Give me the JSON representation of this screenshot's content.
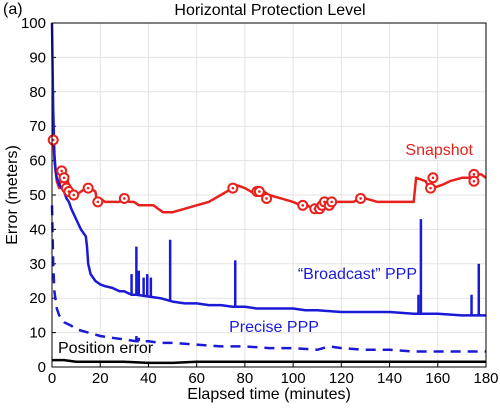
{
  "chart_data": {
    "type": "line",
    "panel_label": "(a)",
    "title": "Horizontal Protection Level",
    "xlabel": "Elapsed time (minutes)",
    "ylabel": "Error (meters)",
    "xlim": [
      0,
      180
    ],
    "ylim": [
      0,
      100
    ],
    "xticks": [
      0,
      20,
      40,
      60,
      80,
      100,
      120,
      140,
      160,
      180
    ],
    "yticks": [
      0,
      10,
      20,
      30,
      40,
      50,
      60,
      70,
      80,
      90,
      100
    ],
    "grid": true,
    "colors": {
      "snapshot": "#e8211c",
      "ppp": "#1a1ad6",
      "position": "#000000",
      "grid": "#e3e3e3"
    },
    "series": [
      {
        "name": "Snapshot",
        "style": "solid",
        "color": "#e8211c",
        "x": [
          0.5,
          1,
          2,
          3,
          4,
          5,
          6,
          7,
          8,
          9,
          10,
          12,
          14,
          16,
          18,
          19,
          20,
          22,
          24,
          26,
          28,
          30,
          32,
          34,
          36,
          38,
          40,
          42,
          44,
          46,
          50,
          55,
          60,
          65,
          70,
          75,
          76,
          80,
          85,
          86,
          88,
          90,
          95,
          100,
          103,
          104,
          108,
          110,
          112,
          114,
          116,
          118,
          120,
          125,
          128,
          130,
          135,
          140,
          145,
          150,
          151,
          155,
          157,
          158,
          162,
          165,
          170,
          174,
          175,
          178,
          180
        ],
        "y": [
          68,
          60,
          54,
          52,
          56,
          57,
          55,
          53,
          51,
          50,
          50,
          51,
          52,
          52,
          51,
          47,
          49,
          48,
          48,
          48,
          48,
          49,
          48,
          48,
          47,
          47,
          47,
          47,
          46,
          45,
          45,
          46,
          47,
          48,
          50,
          52,
          53,
          52,
          50,
          51,
          51,
          50,
          49,
          48,
          47,
          48,
          46,
          46,
          46,
          48,
          48,
          48,
          48,
          48,
          49,
          49,
          48,
          48,
          48,
          48,
          55,
          54,
          51,
          52,
          53,
          54,
          55,
          55,
          56,
          56,
          55
        ]
      },
      {
        "name": "“Broadcast” PPP",
        "style": "solid",
        "color": "#1a1ad6",
        "x": [
          0,
          0.5,
          1,
          1.5,
          2,
          3,
          4,
          5,
          6,
          7,
          8,
          10,
          12,
          13,
          14,
          14.5,
          15,
          16,
          18,
          20,
          22,
          25,
          28,
          30,
          33,
          35,
          40,
          45,
          50,
          55,
          60,
          65,
          70,
          75,
          80,
          85,
          90,
          95,
          100,
          105,
          110,
          120,
          130,
          140,
          150,
          160,
          170,
          175,
          178,
          180
        ],
        "y": [
          100,
          75,
          62,
          57,
          55,
          53,
          52,
          51,
          49,
          48,
          46,
          43,
          40,
          39,
          38,
          35,
          30,
          27,
          25,
          24,
          23.5,
          23,
          22,
          22,
          21,
          21,
          20.5,
          20,
          19,
          18.5,
          18.5,
          18,
          18,
          17.5,
          17.5,
          17,
          17,
          17,
          17,
          16.5,
          16.5,
          16,
          16,
          16,
          15.5,
          15.5,
          15,
          15,
          15,
          15
        ]
      },
      {
        "name": "Precise PPP",
        "style": "dashed",
        "color": "#1a1ad6",
        "x": [
          0,
          0.5,
          1,
          2,
          3,
          5,
          8,
          10,
          15,
          20,
          25,
          30,
          35,
          40,
          45,
          50,
          60,
          70,
          80,
          90,
          100,
          110,
          115,
          120,
          130,
          140,
          150,
          160,
          170,
          180
        ],
        "y": [
          47,
          30,
          22,
          17,
          15,
          13,
          12,
          11,
          10,
          9,
          8.5,
          8,
          7.5,
          7.5,
          7,
          7,
          6.5,
          6,
          6,
          5.5,
          5.5,
          5,
          6,
          5.5,
          5,
          5,
          4.5,
          4.5,
          4.5,
          4.5
        ]
      },
      {
        "name": "Position error",
        "style": "solid",
        "color": "#000000",
        "x": [
          0,
          5,
          10,
          20,
          30,
          40,
          50,
          60,
          70,
          80,
          90,
          100,
          110,
          120,
          130,
          140,
          150,
          160,
          170,
          180
        ],
        "y": [
          2,
          2,
          1.5,
          1.5,
          1.5,
          1.2,
          1.2,
          1.5,
          1.5,
          1.5,
          1.5,
          1.5,
          1.5,
          1.5,
          1.5,
          1.5,
          1.5,
          1.5,
          1.5,
          1.5
        ]
      }
    ],
    "broadcast_spikes": [
      {
        "x": 33,
        "y": 27
      },
      {
        "x": 35,
        "y": 35
      },
      {
        "x": 36,
        "y": 28
      },
      {
        "x": 38,
        "y": 26
      },
      {
        "x": 39.5,
        "y": 27
      },
      {
        "x": 41,
        "y": 26
      },
      {
        "x": 49,
        "y": 37
      },
      {
        "x": 76,
        "y": 31
      },
      {
        "x": 152,
        "y": 21
      },
      {
        "x": 153,
        "y": 43
      },
      {
        "x": 174,
        "y": 21
      },
      {
        "x": 177,
        "y": 30
      }
    ],
    "precise_spikes": [
      {
        "x": 35,
        "y": 9
      },
      {
        "x": 36,
        "y": 8.5
      }
    ],
    "snapshot_markers": [
      {
        "x": 0.5,
        "y": 66
      },
      {
        "x": 4,
        "y": 57
      },
      {
        "x": 5,
        "y": 55
      },
      {
        "x": 6,
        "y": 52
      },
      {
        "x": 7,
        "y": 51
      },
      {
        "x": 9,
        "y": 50
      },
      {
        "x": 15,
        "y": 52
      },
      {
        "x": 19,
        "y": 48
      },
      {
        "x": 30,
        "y": 49
      },
      {
        "x": 75,
        "y": 52
      },
      {
        "x": 85,
        "y": 51
      },
      {
        "x": 86,
        "y": 51
      },
      {
        "x": 89,
        "y": 49
      },
      {
        "x": 104,
        "y": 47
      },
      {
        "x": 109,
        "y": 46
      },
      {
        "x": 111,
        "y": 46
      },
      {
        "x": 112,
        "y": 47
      },
      {
        "x": 113,
        "y": 48
      },
      {
        "x": 115,
        "y": 47
      },
      {
        "x": 116,
        "y": 48
      },
      {
        "x": 128,
        "y": 49
      },
      {
        "x": 157,
        "y": 52
      },
      {
        "x": 158,
        "y": 55
      },
      {
        "x": 175,
        "y": 56
      },
      {
        "x": 175,
        "y": 54
      }
    ],
    "annotations": [
      {
        "text": "Snapshot",
        "color": "#e8211c"
      },
      {
        "text": "“Broadcast” PPP",
        "color": "#1a1ad6"
      },
      {
        "text": "Precise PPP",
        "color": "#1a1ad6"
      },
      {
        "text": "Position error",
        "color": "#000000"
      }
    ]
  }
}
